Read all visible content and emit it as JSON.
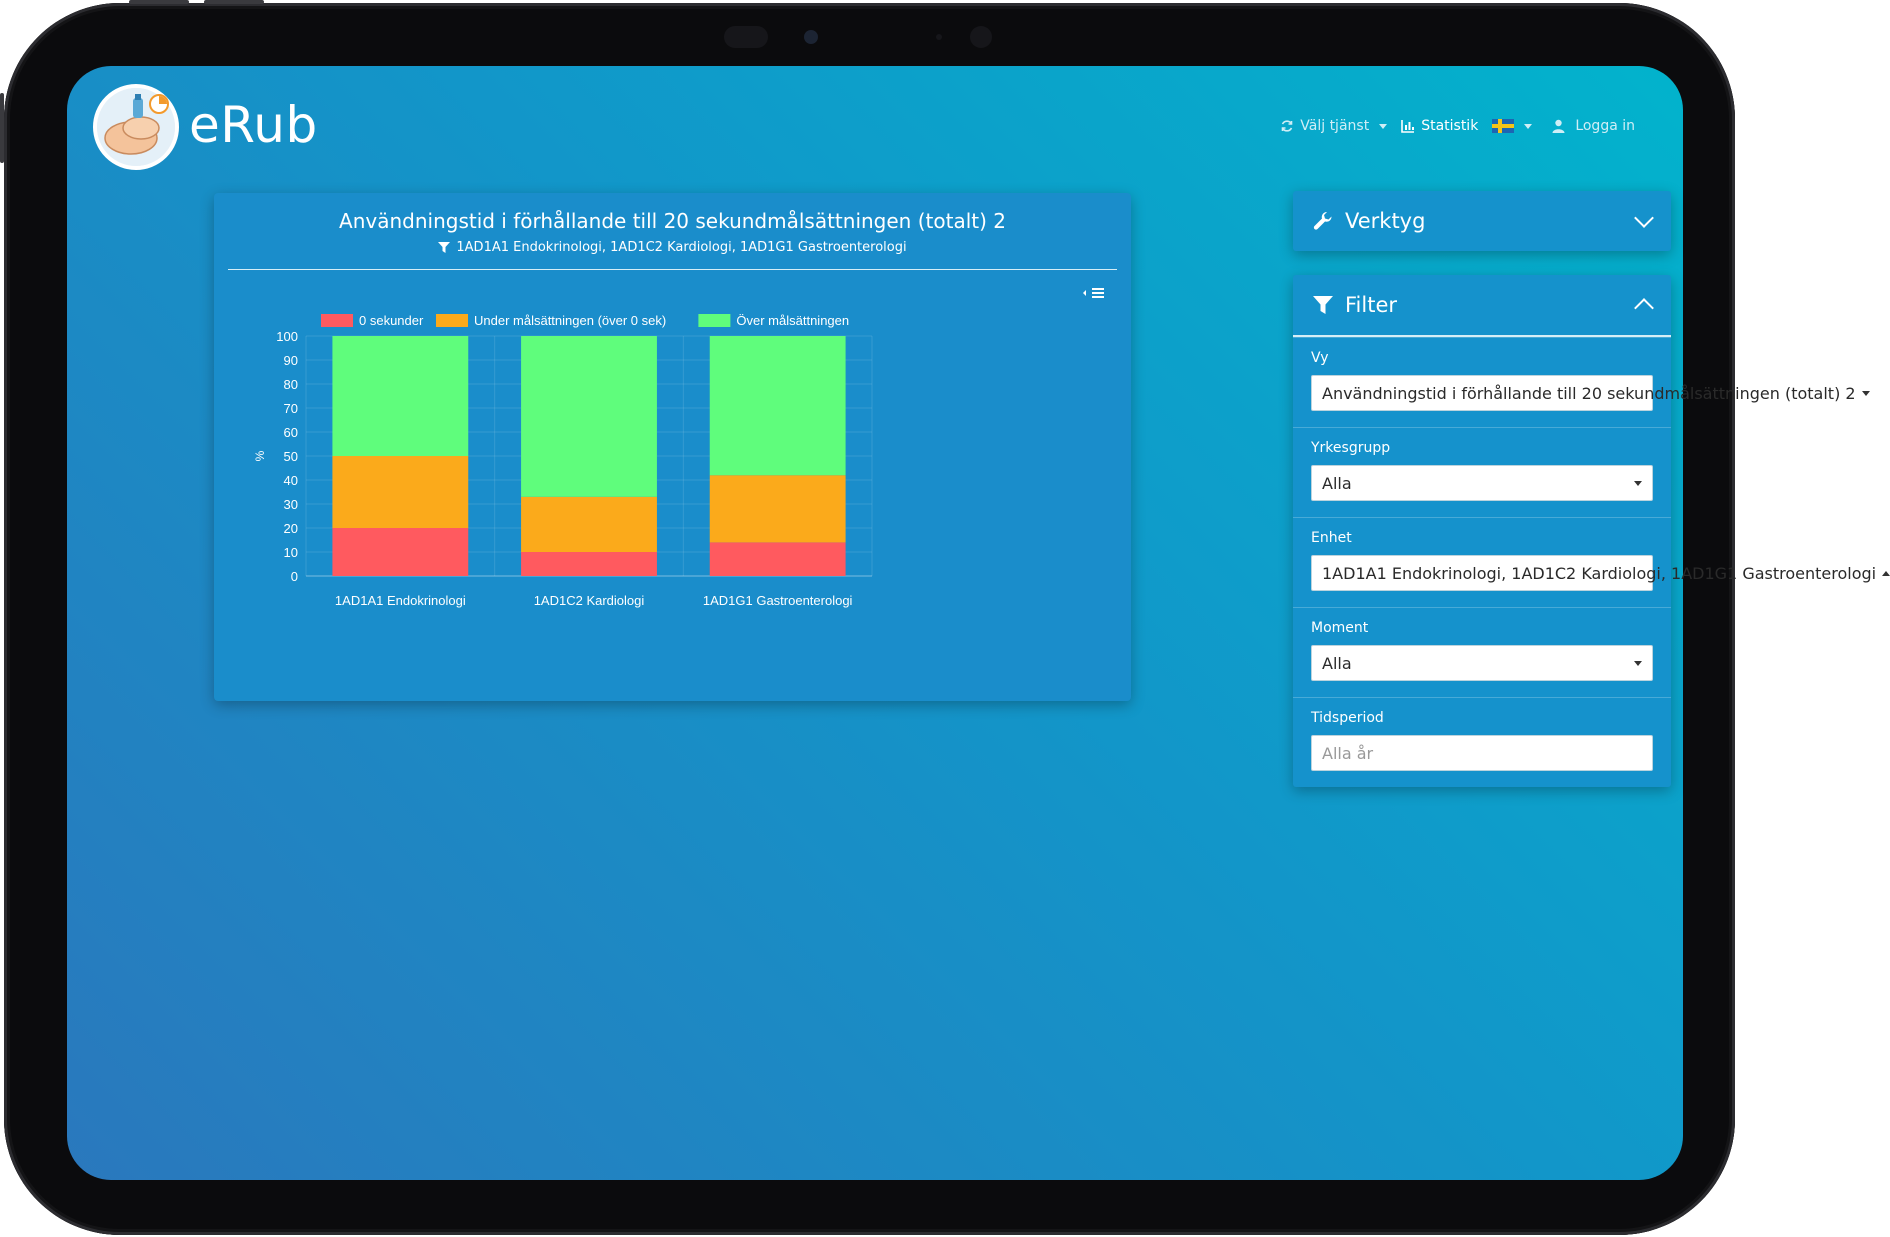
{
  "app": {
    "logo_text": "eRub"
  },
  "nav": {
    "service_label": "Välj tjänst",
    "statistics_label": "Statistik",
    "language": "Svenska",
    "login_label": "Logga in"
  },
  "chart_card": {
    "title": "Användningstid i förhållande till 20 sekundmålsättningen (totalt) 2",
    "filter_text": "1AD1A1 Endokrinologi, 1AD1C2 Kardiologi, 1AD1G1 Gastroenterologi"
  },
  "chart_data": {
    "type": "bar",
    "stacked": true,
    "categories": [
      "1AD1A1 Endokrinologi",
      "1AD1C2 Kardiologi",
      "1AD1G1 Gastroenterologi"
    ],
    "series": [
      {
        "name": "0 sekunder",
        "values": [
          20,
          10,
          14
        ],
        "color": "#ff5a5f"
      },
      {
        "name": "Under målsättningen (över 0 sek)",
        "values": [
          30,
          23,
          28
        ],
        "color": "#fbaa1b"
      },
      {
        "name": "Över målsättningen",
        "values": [
          50,
          67,
          58
        ],
        "color": "#5ffd7c"
      }
    ],
    "ylabel": "%",
    "ylim": [
      0,
      100
    ],
    "yticks": [
      0,
      10,
      20,
      30,
      40,
      50,
      60,
      70,
      80,
      90,
      100
    ],
    "legend_position": "top",
    "grid": true
  },
  "tools_panel": {
    "title": "Verktyg"
  },
  "filter_panel": {
    "title": "Filter",
    "fields": [
      {
        "label": "Vy",
        "value": "Användningstid i förhållande till 20 sekundmålsättningen (totalt) 2"
      },
      {
        "label": "Yrkesgrupp",
        "value": "Alla"
      },
      {
        "label": "Enhet",
        "value": "1AD1A1 Endokrinologi, 1AD1C2 Kardiologi, 1AD1G1 Gastroenterologi"
      },
      {
        "label": "Moment",
        "value": "Alla"
      },
      {
        "label": "Tidsperiod",
        "placeholder": "Alla år"
      }
    ]
  }
}
